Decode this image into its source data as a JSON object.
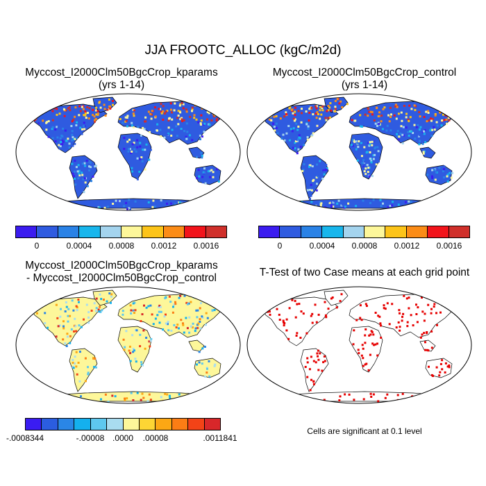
{
  "title": "JJA FROOTC_ALLOC (kgC/m2d)",
  "panels": {
    "top_left": {
      "line1": "Myccost_I2000Clm50BgcCrop_kparams",
      "line2": "(yrs 1-14)"
    },
    "top_right": {
      "line1": "Myccost_I2000Clm50BgcCrop_control",
      "line2": "(yrs 1-14)"
    },
    "bottom_left": {
      "line1": "Myccost_I2000Clm50BgcCrop_kparams",
      "line2": "- Myccost_I2000Clm50BgcCrop_control"
    },
    "bottom_right": {
      "line1": "T-Test of two Case means at each grid point"
    }
  },
  "colorbar_top": {
    "colors": [
      "#3b1cf0",
      "#2f5be0",
      "#2a82e6",
      "#18b6ec",
      "#a4d4ee",
      "#fdf79a",
      "#fcc419",
      "#fb8c17",
      "#f2141b",
      "#d0302b"
    ],
    "ticks": [
      "0",
      "0.0004",
      "0.0008",
      "0.0012",
      "0.0016"
    ]
  },
  "colorbar_diff": {
    "colors": [
      "#3a1cf2",
      "#2b5de0",
      "#2a86e6",
      "#14b0ee",
      "#5ec8ef",
      "#a9dcf0",
      "#fdf79a",
      "#fdd534",
      "#fca714",
      "#fb7d15",
      "#f34317",
      "#d8272a"
    ],
    "ticks": [
      "-.0008344",
      "-.00008",
      ".0000",
      ".00008",
      ".0011841"
    ]
  },
  "ttest_note": "Cells are significant at 0.1 level",
  "map_colors": {
    "ocean": "#ffffff",
    "coast": "#000000",
    "significant": "#e60000"
  }
}
